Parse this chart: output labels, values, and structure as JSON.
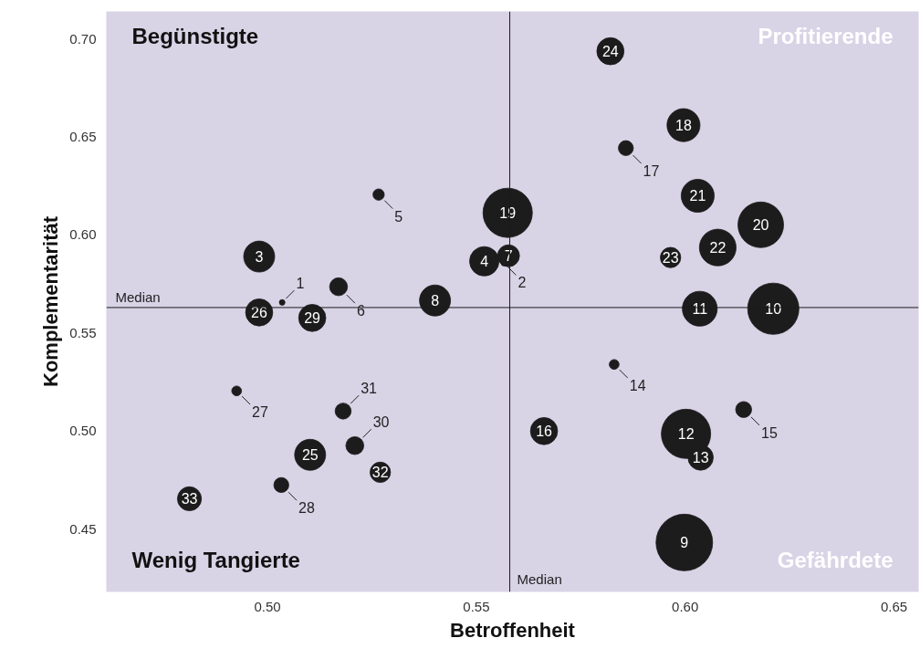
{
  "chart_data": {
    "type": "bubble",
    "xlabel": "Betroffenheit",
    "ylabel": "Komplementarität",
    "x": [
      0.5035,
      0.5566,
      0.498,
      0.5519,
      0.5266,
      0.517,
      0.5577,
      0.5401,
      0.5998,
      0.6211,
      0.6035,
      0.6002,
      0.6037,
      0.583,
      0.614,
      0.5662,
      0.5858,
      0.5996,
      0.5575,
      0.6181,
      0.603,
      0.6078,
      0.5965,
      0.5821,
      0.5102,
      0.498,
      0.4926,
      0.5033,
      0.5107,
      0.5209,
      0.5181,
      0.527,
      0.4813
    ],
    "series": [
      {
        "color": "#1c1c1c",
        "values": [
          0.5656,
          0.5857,
          0.589,
          0.5866,
          0.6206,
          0.5736,
          0.5894,
          0.5666,
          0.4432,
          0.5624,
          0.5624,
          0.4986,
          0.4865,
          0.534,
          0.511,
          0.5,
          0.6443,
          0.656,
          0.6113,
          0.6052,
          0.62,
          0.5936,
          0.5885,
          0.6937,
          0.4879,
          0.5605,
          0.5205,
          0.4725,
          0.5577,
          0.4926,
          0.5102,
          0.479,
          0.4655
        ],
        "sizes": [
          0.01,
          0.01,
          0.3,
          0.27,
          0.04,
          0.1,
          0.15,
          0.3,
          1,
          0.82,
          0.38,
          0.76,
          0.2,
          0.03,
          0.08,
          0.23,
          0.07,
          0.34,
          0.76,
          0.65,
          0.34,
          0.42,
          0.13,
          0.23,
          0.3,
          0.23,
          0.03,
          0.07,
          0.23,
          0.1,
          0.08,
          0.13,
          0.18
        ]
      }
    ],
    "xlim": [
      0.4614,
      0.6559
    ],
    "ylim": [
      0.418,
      0.714
    ],
    "xticks": [
      {
        "value": 0.5,
        "label": "0.50"
      },
      {
        "value": 0.55,
        "label": "0.55"
      },
      {
        "value": 0.6,
        "label": "0.60"
      },
      {
        "value": 0.65,
        "label": "0.65"
      }
    ],
    "yticks": [
      {
        "value": 0.45,
        "label": "0.45"
      },
      {
        "value": 0.5,
        "label": "0.50"
      },
      {
        "value": 0.55,
        "label": "0.55"
      },
      {
        "value": 0.6,
        "label": "0.60"
      },
      {
        "value": 0.65,
        "label": "0.65"
      },
      {
        "value": 0.7,
        "label": "0.70"
      }
    ],
    "ref_lines": [
      {
        "axis": "x",
        "value": 0.558,
        "label": "Median",
        "color": "#1c1c1c"
      },
      {
        "axis": "y",
        "value": 0.563,
        "label": "Median",
        "color": "#1c1c1c"
      }
    ],
    "annotations": [
      "Begünstigte",
      "Profitierende",
      "Wenig Tangierte",
      "Gefährdete",
      {
        "text": "1",
        "x": 0.5035,
        "y": 0.5656
      },
      {
        "text": "2",
        "x": 0.5566,
        "y": 0.5857
      },
      {
        "text": "3",
        "x": 0.498,
        "y": 0.589
      },
      {
        "text": "4",
        "x": 0.5519,
        "y": 0.5866
      },
      {
        "text": "5",
        "x": 0.5266,
        "y": 0.6206
      },
      {
        "text": "6",
        "x": 0.517,
        "y": 0.5736
      },
      {
        "text": "7",
        "x": 0.5577,
        "y": 0.5894
      },
      {
        "text": "8",
        "x": 0.5401,
        "y": 0.5666
      },
      {
        "text": "9",
        "x": 0.5998,
        "y": 0.4432
      },
      {
        "text": "10",
        "x": 0.6211,
        "y": 0.5624
      },
      {
        "text": "11",
        "x": 0.6035,
        "y": 0.5624
      },
      {
        "text": "12",
        "x": 0.6002,
        "y": 0.4986
      },
      {
        "text": "13",
        "x": 0.6037,
        "y": 0.4865
      },
      {
        "text": "14",
        "x": 0.583,
        "y": 0.534
      },
      {
        "text": "15",
        "x": 0.614,
        "y": 0.511
      },
      {
        "text": "16",
        "x": 0.5662,
        "y": 0.5
      },
      {
        "text": "17",
        "x": 0.5858,
        "y": 0.6443
      },
      {
        "text": "18",
        "x": 0.5996,
        "y": 0.656
      },
      {
        "text": "19",
        "x": 0.5575,
        "y": 0.6113
      },
      {
        "text": "20",
        "x": 0.6181,
        "y": 0.6052
      },
      {
        "text": "21",
        "x": 0.603,
        "y": 0.62
      },
      {
        "text": "22",
        "x": 0.6078,
        "y": 0.5936
      },
      {
        "text": "23",
        "x": 0.5965,
        "y": 0.5885
      },
      {
        "text": "24",
        "x": 0.5821,
        "y": 0.6937
      },
      {
        "text": "25",
        "x": 0.5102,
        "y": 0.4879
      },
      {
        "text": "26",
        "x": 0.498,
        "y": 0.5605
      },
      {
        "text": "27",
        "x": 0.4926,
        "y": 0.5205
      },
      {
        "text": "28",
        "x": 0.5033,
        "y": 0.4725
      },
      {
        "text": "29",
        "x": 0.5107,
        "y": 0.5577
      },
      {
        "text": "30",
        "x": 0.5209,
        "y": 0.4926
      },
      {
        "text": "31",
        "x": 0.5181,
        "y": 0.5102
      },
      {
        "text": "32",
        "x": 0.527,
        "y": 0.479
      },
      {
        "text": "33",
        "x": 0.4813,
        "y": 0.4655
      }
    ]
  }
}
